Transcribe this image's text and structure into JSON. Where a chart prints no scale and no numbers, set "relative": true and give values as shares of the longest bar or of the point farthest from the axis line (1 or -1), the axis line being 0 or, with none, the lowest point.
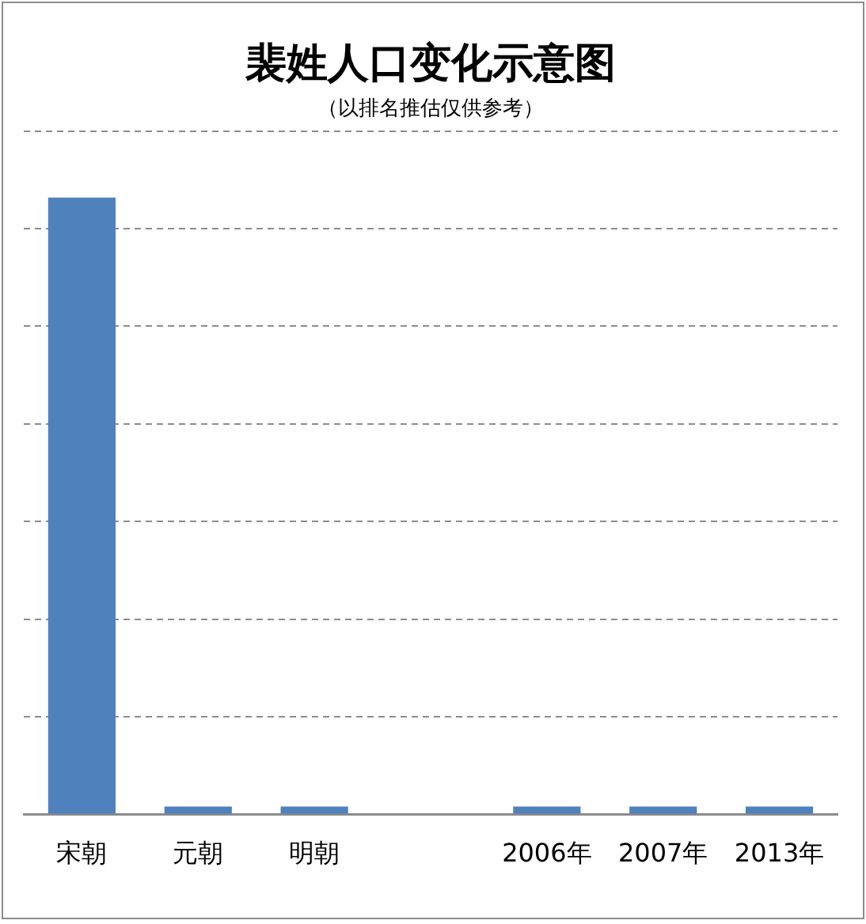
{
  "chart_data": {
    "type": "bar",
    "title": "裴姓人口变化示意图",
    "subtitle": "（以排名推估仅供参考）",
    "categories": [
      "宋朝",
      "元朝",
      "明朝",
      null,
      "2006年",
      "2007年",
      "2013年"
    ],
    "values": [
      1,
      0.013,
      0.013,
      null,
      0.013,
      0.013,
      0.013
    ],
    "color": "#4f81bd",
    "relative": true,
    "grid": "y"
  }
}
